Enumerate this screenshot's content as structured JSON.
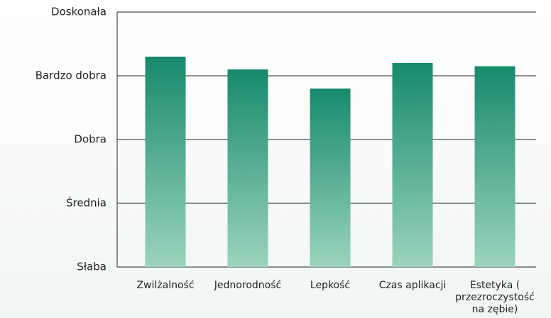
{
  "chart_data": {
    "type": "bar",
    "categories": [
      "Zwilżalność",
      "Jednorodność",
      "Lepkość",
      "Czas aplikacji",
      "Estetyka ( przezroczystość na zębie)"
    ],
    "values": [
      4.3,
      4.1,
      3.8,
      4.2,
      4.15
    ],
    "ylim": [
      1,
      5
    ],
    "yticks": [
      {
        "value": 1,
        "label": "Słaba"
      },
      {
        "value": 2,
        "label": "Średnia"
      },
      {
        "value": 3,
        "label": "Dobra"
      },
      {
        "value": 4,
        "label": "Bardzo dobra"
      },
      {
        "value": 5,
        "label": "Doskonała"
      }
    ],
    "grid": true
  }
}
